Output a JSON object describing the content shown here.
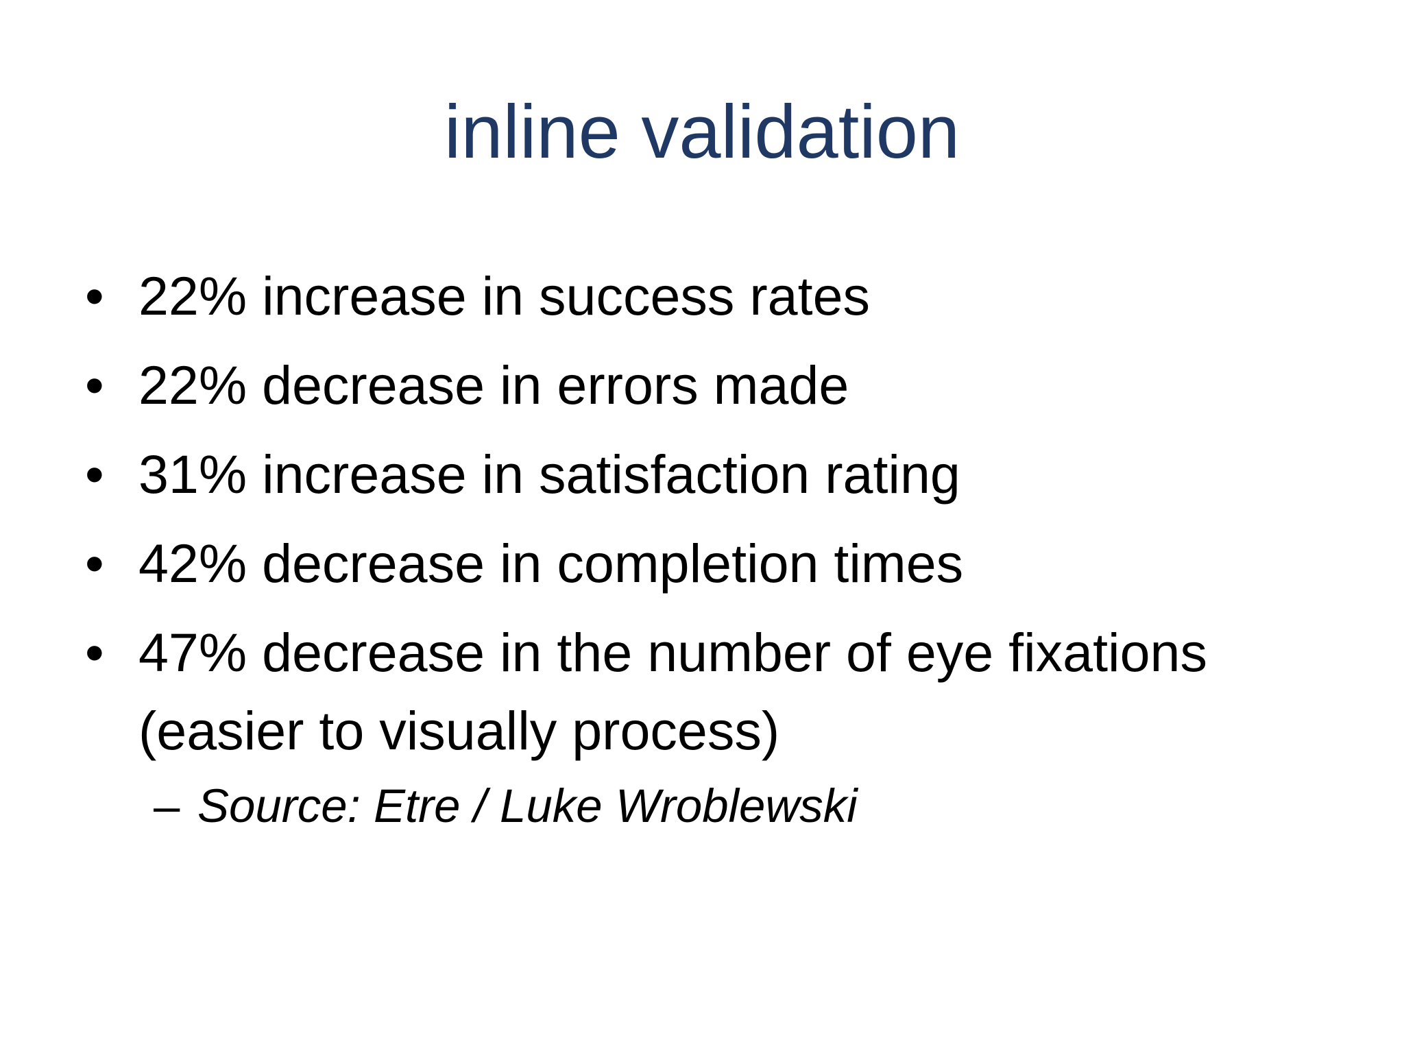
{
  "slide": {
    "title": "inline validation",
    "bullet_symbol": "•",
    "bullets": [
      {
        "text": "22% increase in success rates"
      },
      {
        "text": "22% decrease in errors made"
      },
      {
        "text": "31% increase in satisfaction rating"
      },
      {
        "text": "42% decrease in completion times"
      },
      {
        "text": "47% decrease in the number of eye fixations (easier to visually process)"
      }
    ],
    "sub_bullet": {
      "symbol": "–",
      "text": "Source: Etre / Luke Wroblewski"
    }
  },
  "colors": {
    "title": "#1f3864",
    "body_text": "#000000",
    "background": "#ffffff"
  }
}
